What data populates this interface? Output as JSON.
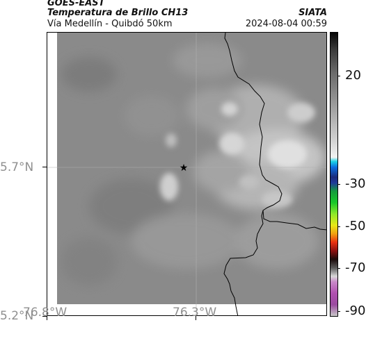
{
  "header": {
    "satellite": "GOES-EAST",
    "product": "Temperatura de Brillo CH13",
    "area": "Vía Medellín - Quibdó 50km",
    "agency": "SIATA",
    "datetime": "2024-08-04 00:59"
  },
  "map": {
    "lat_labels": [
      "5.7°N",
      "5.2°N"
    ],
    "lon_labels": [
      "76.8°W",
      "76.3°W"
    ],
    "marker": "star-marker",
    "colors": {
      "background_gray": "#8a8a8a",
      "cloud_light": "#d8d8d8",
      "frame": "#000000",
      "border_line": "#000000",
      "gridline": "#b0b0b0"
    }
  },
  "colorbar": {
    "labels": [
      "20",
      "-30",
      "-50",
      "-70",
      "-90"
    ]
  }
}
